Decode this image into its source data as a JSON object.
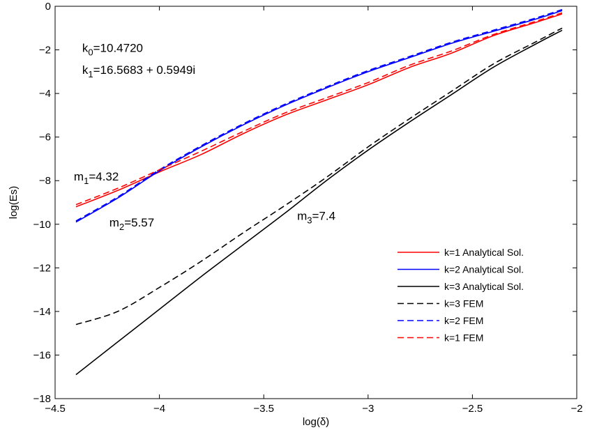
{
  "chart_data": {
    "type": "line",
    "xlabel": "log(δ)",
    "ylabel": "log(Es)",
    "xlim": [
      -4.5,
      -2
    ],
    "ylim": [
      -18,
      0
    ],
    "xticks": [
      -4.5,
      -4,
      -3.5,
      -3,
      -2.5,
      -2
    ],
    "yticks": [
      0,
      -2,
      -4,
      -6,
      -8,
      -10,
      -12,
      -14,
      -16,
      -18
    ],
    "xtick_labels": [
      "−4.5",
      "−4",
      "−3.5",
      "−3",
      "−2.5",
      "−2"
    ],
    "ytick_labels": [
      "0",
      "−2",
      "−4",
      "−6",
      "−8",
      "−10",
      "−12",
      "−14",
      "−16",
      "−18"
    ],
    "grid": false,
    "legend_position": "bottom-right",
    "series": [
      {
        "name": "k=1 Analytical Sol.",
        "color": "#ff0000",
        "dash": "solid",
        "x": [
          -4.4,
          -4.2,
          -4.0,
          -3.8,
          -3.6,
          -3.4,
          -3.2,
          -3.0,
          -2.8,
          -2.6,
          -2.4,
          -2.2,
          -2.07
        ],
        "y": [
          -9.2,
          -8.45,
          -7.6,
          -6.8,
          -5.85,
          -5.0,
          -4.3,
          -3.6,
          -2.8,
          -2.15,
          -1.35,
          -0.75,
          -0.35
        ]
      },
      {
        "name": "k=2 Analytical Sol.",
        "color": "#0000ff",
        "dash": "solid",
        "x": [
          -4.4,
          -4.2,
          -4.0,
          -3.8,
          -3.6,
          -3.4,
          -3.2,
          -3.0,
          -2.8,
          -2.6,
          -2.4,
          -2.2,
          -2.07
        ],
        "y": [
          -9.9,
          -8.8,
          -7.55,
          -6.45,
          -5.45,
          -4.55,
          -3.75,
          -3.0,
          -2.35,
          -1.7,
          -1.15,
          -0.6,
          -0.2
        ]
      },
      {
        "name": "k=3 Analytical Sol.",
        "color": "#000000",
        "dash": "solid",
        "x": [
          -4.4,
          -4.2,
          -4.0,
          -3.8,
          -3.6,
          -3.4,
          -3.2,
          -3.0,
          -2.8,
          -2.6,
          -2.4,
          -2.2,
          -2.07
        ],
        "y": [
          -16.9,
          -15.4,
          -13.9,
          -12.4,
          -10.95,
          -9.5,
          -8.0,
          -6.6,
          -5.3,
          -4.05,
          -2.8,
          -1.75,
          -1.1
        ]
      },
      {
        "name": "k=3 FEM",
        "color": "#000000",
        "dash": "dashed",
        "x": [
          -4.4,
          -4.2,
          -4.0,
          -3.8,
          -3.6,
          -3.4,
          -3.2,
          -3.0,
          -2.8,
          -2.6,
          -2.4,
          -2.2,
          -2.07
        ],
        "y": [
          -14.6,
          -14.0,
          -12.9,
          -11.7,
          -10.4,
          -9.15,
          -7.85,
          -6.45,
          -5.15,
          -3.9,
          -2.65,
          -1.65,
          -1.0
        ]
      },
      {
        "name": "k=2 FEM",
        "color": "#0000ff",
        "dash": "dashed",
        "x": [
          -4.4,
          -4.2,
          -4.0,
          -3.8,
          -3.6,
          -3.4,
          -3.2,
          -3.0,
          -2.8,
          -2.6,
          -2.4,
          -2.2,
          -2.07
        ],
        "y": [
          -9.85,
          -8.75,
          -7.5,
          -6.4,
          -5.4,
          -4.5,
          -3.7,
          -2.95,
          -2.3,
          -1.65,
          -1.1,
          -0.55,
          -0.15
        ]
      },
      {
        "name": "k=1 FEM",
        "color": "#ff0000",
        "dash": "dashed",
        "x": [
          -4.4,
          -4.2,
          -4.0,
          -3.8,
          -3.6,
          -3.4,
          -3.2,
          -3.0,
          -2.8,
          -2.6,
          -2.4,
          -2.2,
          -2.07
        ],
        "y": [
          -9.1,
          -8.35,
          -7.5,
          -6.65,
          -5.75,
          -4.9,
          -4.2,
          -3.5,
          -2.7,
          -2.05,
          -1.3,
          -0.7,
          -0.3
        ]
      }
    ],
    "annotations": [
      {
        "id": "k0",
        "label": "k",
        "sub": "0",
        "rest": "=10.4720",
        "x": -4.37,
        "y": -2.1
      },
      {
        "id": "k1",
        "label": "k",
        "sub": "1",
        "rest": "=16.5683 + 0.5949i",
        "x": -4.37,
        "y": -3.1
      },
      {
        "id": "m1",
        "label": "m",
        "sub": "1",
        "rest": "=4.32",
        "x": -4.41,
        "y": -8.0
      },
      {
        "id": "m2",
        "label": "m",
        "sub": "2",
        "rest": "=5.57",
        "x": -4.24,
        "y": -10.1
      },
      {
        "id": "m3",
        "label": "m",
        "sub": "3",
        "rest": "=7.4",
        "x": -3.34,
        "y": -9.8
      }
    ]
  }
}
